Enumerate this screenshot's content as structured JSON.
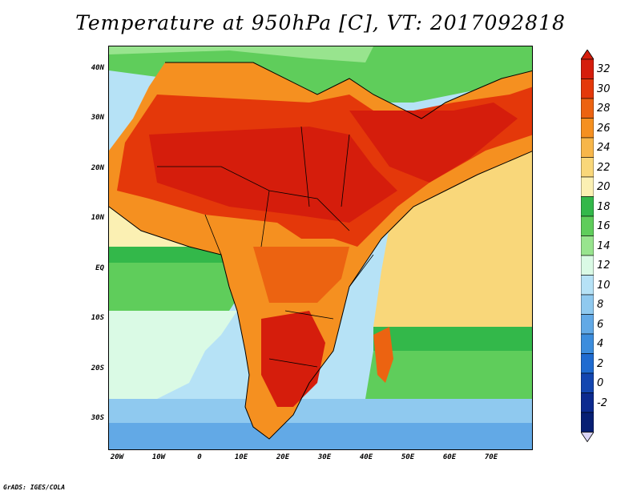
{
  "title": "Temperature at 950hPa [C], VT: 2017092818",
  "lat_labels": [
    "40N",
    "30N",
    "20N",
    "10N",
    "EQ",
    "10S",
    "20S",
    "30S"
  ],
  "lon_labels": [
    "20W",
    "10W",
    "0",
    "10E",
    "20E",
    "30E",
    "40E",
    "50E",
    "60E",
    "70E"
  ],
  "colorbar": {
    "labels": [
      "32",
      "30",
      "28",
      "26",
      "24",
      "22",
      "20",
      "18",
      "16",
      "14",
      "12",
      "10",
      "8",
      "6",
      "4",
      "2",
      "0",
      "-2"
    ],
    "colors": [
      "#d51d0c",
      "#e4380a",
      "#ec6311",
      "#f59020",
      "#f7b64a",
      "#f9d77a",
      "#fbf0b3",
      "#33b84a",
      "#5fcd5b",
      "#98e48e",
      "#dafae5",
      "#b6e2f6",
      "#8fc9ef",
      "#62a9e6",
      "#3c8ddd",
      "#1f6bd0",
      "#1346b0",
      "#0c2a8f",
      "#071f74"
    ],
    "top_arrow_color": "#d51d0c",
    "bottom_arrow_color": "#d9d4f7"
  },
  "credit": "GrADS: IGES/COLA"
}
